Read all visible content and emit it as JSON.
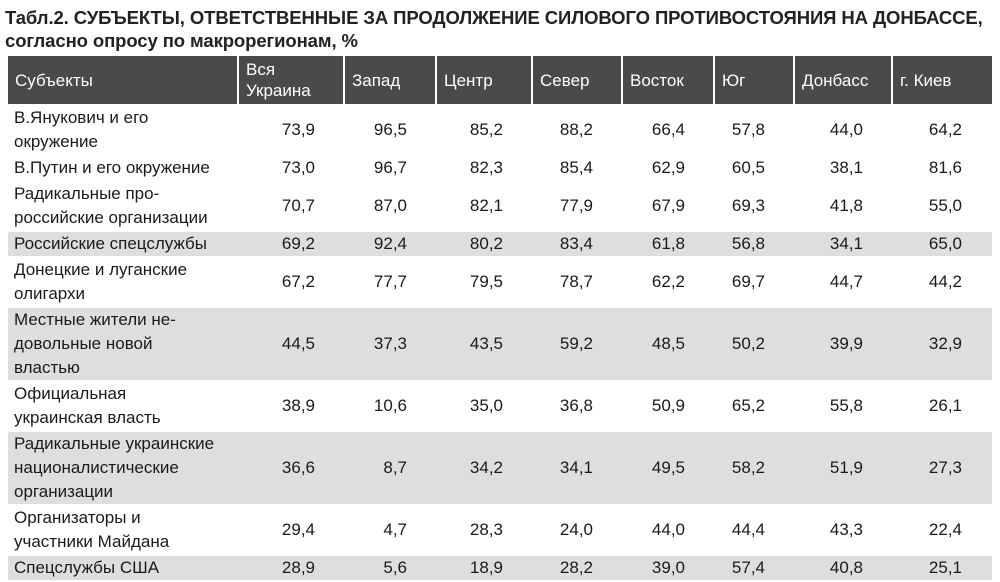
{
  "title": {
    "line1": "Табл.2. СУБЪЕКТЫ, ОТВЕТСТВЕННЫЕ ЗА ПРОДОЛЖЕНИЕ СИЛОВОГО ПРОТИВОСТОЯНИЯ НА ДОНБАССЕ,",
    "line2": "согласно опросу по макрорегионам, %"
  },
  "table": {
    "headers": [
      "Субъекты",
      "Вся Украина",
      "Запад",
      "Центр",
      "Север",
      "Восток",
      "Юг",
      "Донбасс",
      "г. Киев"
    ],
    "header_line_parts": {
      "all_ukraine_line1": "Вся",
      "all_ukraine_line2": "Украина"
    },
    "rows": [
      {
        "label_lines": [
          "В.Янукович и его",
          "окружение"
        ],
        "values": [
          "73,9",
          "96,5",
          "85,2",
          "88,2",
          "66,4",
          "57,8",
          "44,0",
          "64,2"
        ]
      },
      {
        "label_lines": [
          "В.Путин и его окружение"
        ],
        "values": [
          "73,0",
          "96,7",
          "82,3",
          "85,4",
          "62,9",
          "60,5",
          "38,1",
          "81,6"
        ]
      },
      {
        "label_lines": [
          "Радикальные про-",
          "российские организации"
        ],
        "values": [
          "70,7",
          "87,0",
          "82,1",
          "77,9",
          "67,9",
          "69,3",
          "41,8",
          "55,0"
        ]
      },
      {
        "label_lines": [
          "Российские спецслужбы"
        ],
        "values": [
          "69,2",
          "92,4",
          "80,2",
          "83,4",
          "61,8",
          "56,8",
          "34,1",
          "65,0"
        ]
      },
      {
        "label_lines": [
          "Донецкие и луганские",
          "олигархи"
        ],
        "values": [
          "67,2",
          "77,7",
          "79,5",
          "78,7",
          "62,2",
          "69,7",
          "44,7",
          "44,2"
        ]
      },
      {
        "label_lines": [
          "Местные жители не-",
          "довольные новой",
          "властью"
        ],
        "values": [
          "44,5",
          "37,3",
          "43,5",
          "59,2",
          "48,5",
          "50,2",
          "39,9",
          "32,9"
        ]
      },
      {
        "label_lines": [
          "Официальная",
          "украинская власть"
        ],
        "values": [
          "38,9",
          "10,6",
          "35,0",
          "36,8",
          "50,9",
          "65,2",
          "55,8",
          "26,1"
        ]
      },
      {
        "label_lines": [
          "Радикальные украинские",
          "националистические",
          "организации"
        ],
        "values": [
          "36,6",
          "8,7",
          "34,2",
          "34,1",
          "49,5",
          "58,2",
          "51,9",
          "27,3"
        ]
      },
      {
        "label_lines": [
          "Организаторы и",
          "участники Майдана"
        ],
        "values": [
          "29,4",
          "4,7",
          "28,3",
          "24,0",
          "44,0",
          "44,4",
          "43,3",
          "22,4"
        ]
      },
      {
        "label_lines": [
          "Спецслужбы США"
        ],
        "values": [
          "28,9",
          "5,6",
          "18,9",
          "28,2",
          "39,0",
          "57,4",
          "40,8",
          "25,1"
        ]
      }
    ]
  },
  "colors": {
    "header_bg": "#4a4a4a",
    "header_text": "#ffffff",
    "row_white": "#ffffff",
    "row_grey": "#dedede"
  }
}
